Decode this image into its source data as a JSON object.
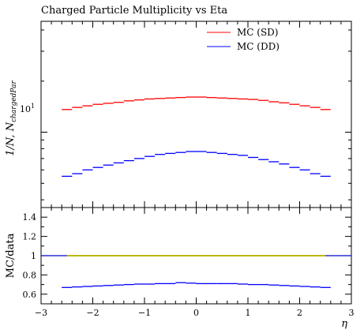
{
  "chart_data": [
    {
      "panel": "main",
      "type": "line",
      "title": "Charged Particle Multiplicity vs Eta",
      "ylabel": "1/N, N_chargedPar",
      "y_scale": "log",
      "ylim": [
        3.6,
        45
      ],
      "xlim": [
        -3,
        3
      ],
      "y_tick_labels": [
        {
          "base": "10",
          "exp": "1",
          "value": 10
        }
      ],
      "legend": {
        "placement": "top-right"
      },
      "x": [
        -2.5,
        -2.3,
        -2.1,
        -1.9,
        -1.7,
        -1.5,
        -1.3,
        -1.1,
        -0.9,
        -0.7,
        -0.5,
        -0.3,
        -0.1,
        0.1,
        0.3,
        0.5,
        0.7,
        0.9,
        1.1,
        1.3,
        1.5,
        1.7,
        1.9,
        2.1,
        2.3,
        2.5
      ],
      "series": [
        {
          "name": "MC (SD)",
          "color": "#ff0000",
          "values": [
            13.6,
            14.0,
            14.3,
            14.6,
            14.8,
            15.0,
            15.3,
            15.5,
            15.7,
            15.8,
            15.9,
            16.0,
            16.1,
            16.1,
            16.0,
            15.9,
            15.8,
            15.7,
            15.6,
            15.4,
            15.1,
            14.9,
            14.6,
            14.3,
            14.0,
            13.6
          ]
        },
        {
          "name": "MC (DD)",
          "color": "#0000ff",
          "values": [
            5.5,
            5.7,
            6.0,
            6.2,
            6.4,
            6.6,
            6.8,
            7.0,
            7.2,
            7.4,
            7.5,
            7.6,
            7.7,
            7.7,
            7.6,
            7.5,
            7.4,
            7.3,
            7.1,
            6.9,
            6.7,
            6.5,
            6.2,
            6.0,
            5.7,
            5.5
          ]
        }
      ]
    },
    {
      "panel": "ratio",
      "type": "line",
      "ylabel": "MC/data",
      "xlabel": "η",
      "ylim": [
        0.5,
        1.5
      ],
      "xlim": [
        -3,
        3
      ],
      "y_ticks": [
        0.6,
        0.8,
        1,
        1.2,
        1.4
      ],
      "y_tick_labels": [
        "0.6",
        "0.8",
        "1",
        "1.2",
        "1.4"
      ],
      "x_ticks": [
        -3,
        -2,
        -1,
        0,
        1,
        2,
        3
      ],
      "x_tick_labels": [
        "−3",
        "−2",
        "−1",
        "0",
        "1",
        "2",
        "3"
      ],
      "reference_band": {
        "y": 1,
        "x_range": [
          -2.5,
          2.5
        ],
        "color": "#b8b800",
        "line_color": "#0000cc"
      },
      "x": [
        -2.5,
        -2.3,
        -2.1,
        -1.9,
        -1.7,
        -1.5,
        -1.3,
        -1.1,
        -0.9,
        -0.7,
        -0.5,
        -0.3,
        -0.1,
        0.1,
        0.3,
        0.5,
        0.7,
        0.9,
        1.1,
        1.3,
        1.5,
        1.7,
        1.9,
        2.1,
        2.3,
        2.5
      ],
      "series": [
        {
          "color": "#0000ff",
          "values": [
            0.67,
            0.675,
            0.68,
            0.685,
            0.69,
            0.695,
            0.7,
            0.705,
            0.705,
            0.71,
            0.71,
            0.72,
            0.715,
            0.71,
            0.71,
            0.71,
            0.71,
            0.705,
            0.7,
            0.7,
            0.695,
            0.69,
            0.685,
            0.68,
            0.675,
            0.67
          ]
        }
      ]
    }
  ]
}
